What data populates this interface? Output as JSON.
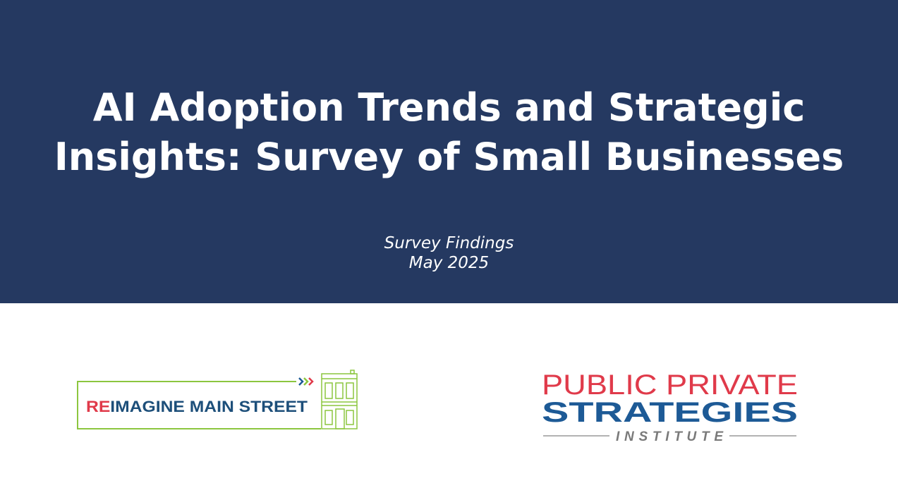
{
  "title_lines": [
    "AI Adoption Trends and Strategic",
    "Insights: Survey of Small Businesses"
  ],
  "subtitle_lines": [
    "Survey Findings",
    "May 2025"
  ],
  "logo_left": {
    "accent": "RE",
    "text": "IMAGINE MAIN STREET"
  },
  "logo_right": {
    "line1": "PUBLIC PRIVATE",
    "line2": "STRATEGIES",
    "line3": "INSTITUTE"
  }
}
